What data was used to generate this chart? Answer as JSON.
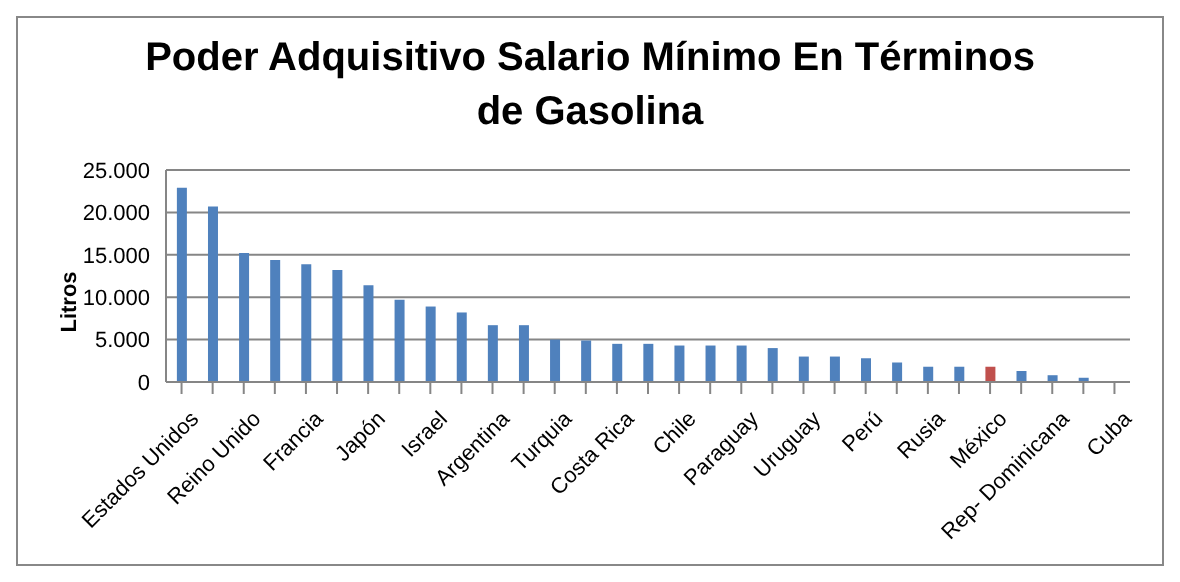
{
  "chart_data": {
    "type": "bar",
    "title": "Poder Adquisitivo Salario Mínimo En Términos de Gasolina",
    "ylabel": "Litros",
    "categories": [
      "Estados Unidos",
      null,
      "Reino Unido",
      null,
      "Francia",
      null,
      "Japón",
      null,
      "Israel",
      null,
      "Argentina",
      null,
      "Turquia",
      null,
      "Costa Rica",
      null,
      "Chile",
      null,
      "Paraguay",
      null,
      "Uruguay",
      null,
      "Perú",
      null,
      "Rusia",
      null,
      "México",
      null,
      "Rep- Dominicana",
      null,
      "Cuba"
    ],
    "values": [
      22900,
      20700,
      15200,
      14400,
      13900,
      13200,
      11400,
      9700,
      8900,
      8200,
      6700,
      6700,
      5000,
      4900,
      4500,
      4500,
      4300,
      4300,
      4300,
      4000,
      3000,
      3000,
      2800,
      2300,
      1800,
      1800,
      1800,
      1300,
      800,
      500,
      0
    ],
    "colors": [
      "#4f81bd",
      "#4f81bd",
      "#4f81bd",
      "#4f81bd",
      "#4f81bd",
      "#4f81bd",
      "#4f81bd",
      "#4f81bd",
      "#4f81bd",
      "#4f81bd",
      "#4f81bd",
      "#4f81bd",
      "#4f81bd",
      "#4f81bd",
      "#4f81bd",
      "#4f81bd",
      "#4f81bd",
      "#4f81bd",
      "#4f81bd",
      "#4f81bd",
      "#4f81bd",
      "#4f81bd",
      "#4f81bd",
      "#4f81bd",
      "#4f81bd",
      "#4f81bd",
      "#c0504d",
      "#4f81bd",
      "#4f81bd",
      "#4f81bd",
      "#4f81bd"
    ],
    "ylim": [
      0,
      25000
    ],
    "yticks": [
      {
        "value": 0,
        "label": "0"
      },
      {
        "value": 5000,
        "label": "5.000"
      },
      {
        "value": 10000,
        "label": "10.000"
      },
      {
        "value": 15000,
        "label": "15.000"
      },
      {
        "value": 20000,
        "label": "20.000"
      },
      {
        "value": 25000,
        "label": "25.000"
      }
    ],
    "grid": "y"
  }
}
